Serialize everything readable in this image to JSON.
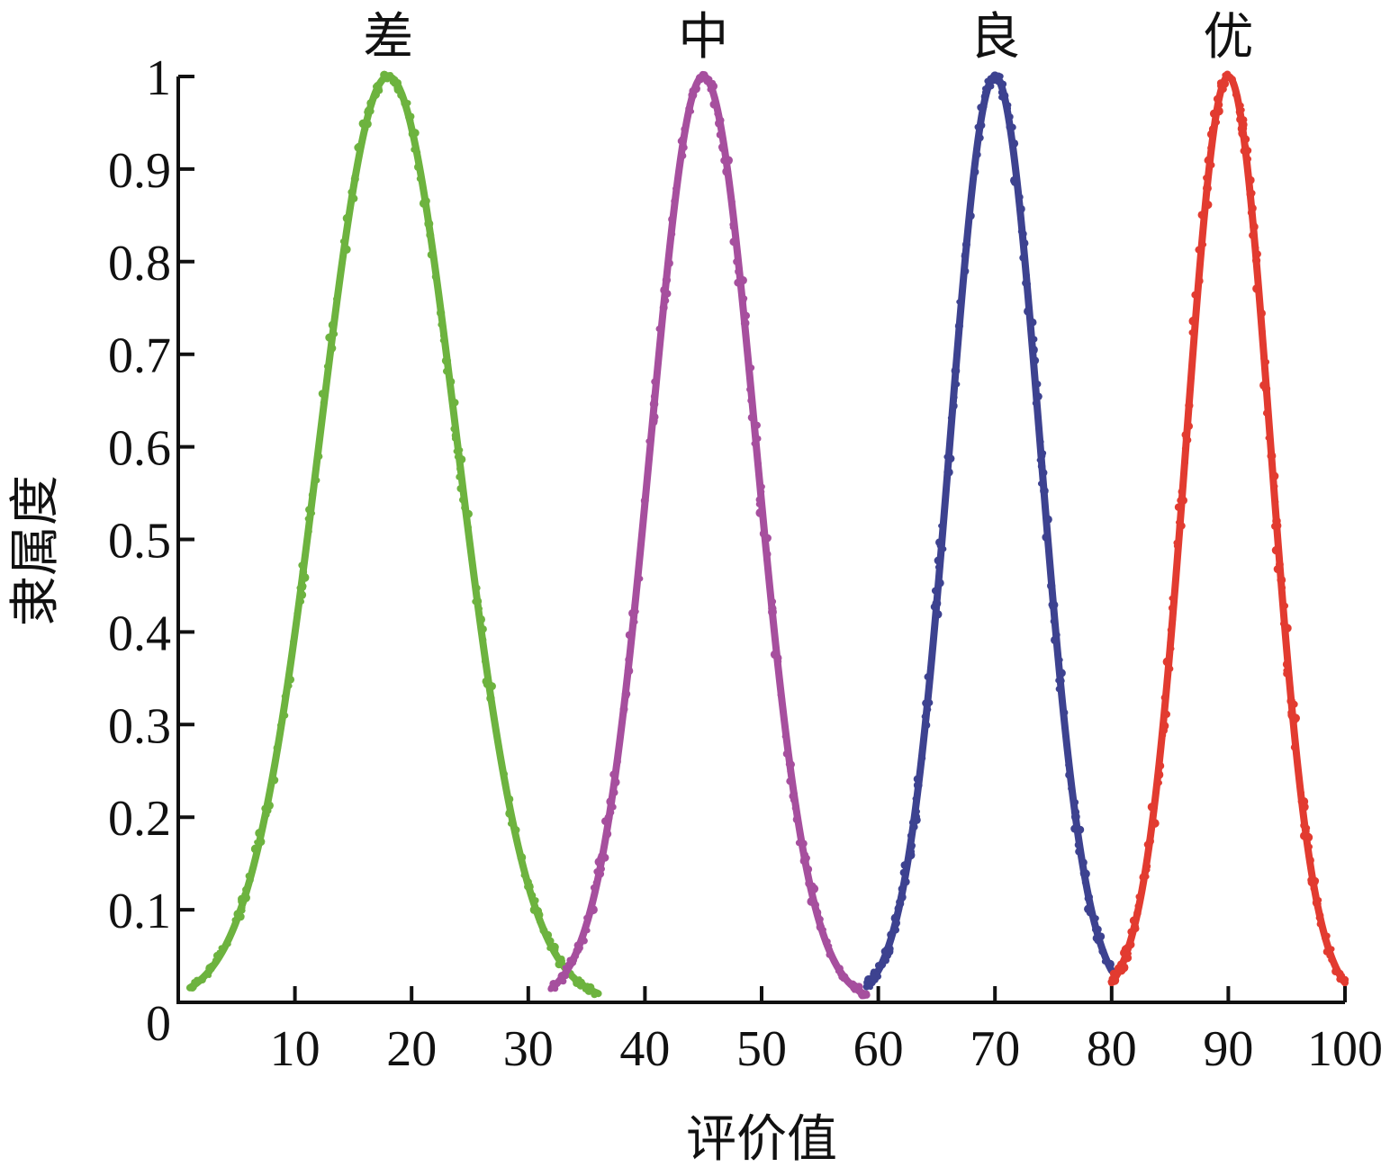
{
  "chart_data": {
    "type": "line",
    "xlabel": "评价值",
    "ylabel": "隶属度",
    "xlim": [
      0,
      100
    ],
    "ylim": [
      0,
      1
    ],
    "x_ticks": [
      10,
      20,
      30,
      40,
      50,
      60,
      70,
      80,
      90,
      100
    ],
    "y_ticks": [
      0,
      0.1,
      0.2,
      0.3,
      0.4,
      0.5,
      0.6,
      0.7,
      0.8,
      0.9,
      1
    ],
    "x_tick_labels": [
      "10",
      "20",
      "30",
      "40",
      "50",
      "60",
      "70",
      "80",
      "90",
      "100"
    ],
    "y_tick_labels": [
      "0",
      "0.1",
      "0.2",
      "0.3",
      "0.4",
      "0.5",
      "0.6",
      "0.7",
      "0.8",
      "0.9",
      "1"
    ],
    "grid": false,
    "legend": "labels above peaks",
    "series": [
      {
        "name": "差",
        "color": "#6db33f",
        "peak_x": 18,
        "sigma": 5.9,
        "x_range": [
          1,
          36
        ]
      },
      {
        "name": "中",
        "color": "#a64f9e",
        "peak_x": 45,
        "sigma": 4.5,
        "x_range": [
          32,
          59
        ]
      },
      {
        "name": "良",
        "color": "#3d4290",
        "peak_x": 70,
        "sigma": 3.85,
        "x_range": [
          59,
          80
        ]
      },
      {
        "name": "优",
        "color": "#e23b30",
        "peak_x": 90,
        "sigma": 3.6,
        "x_range": [
          80,
          100
        ]
      }
    ]
  }
}
